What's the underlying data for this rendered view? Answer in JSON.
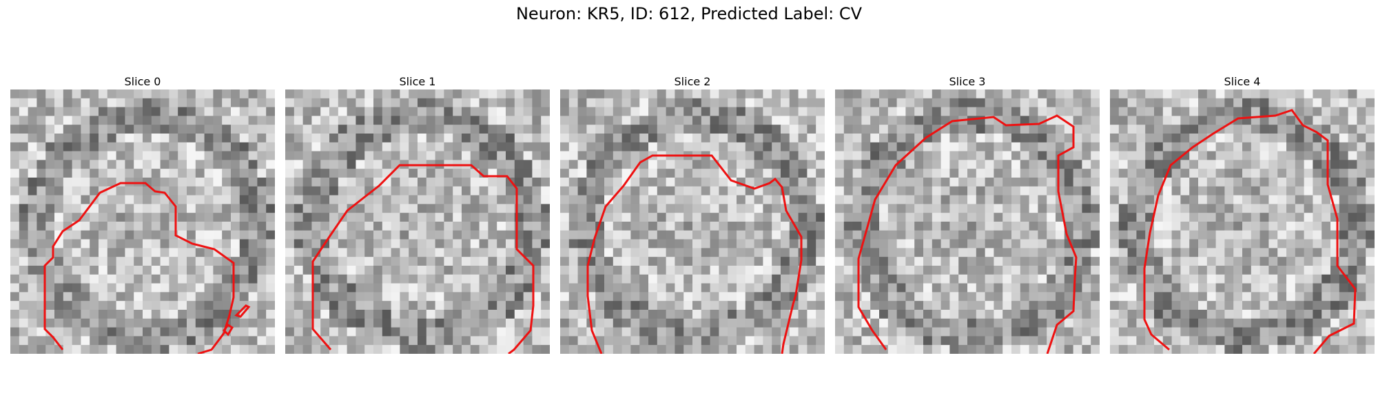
{
  "figure": {
    "title": "Neuron: KR5, ID: 612, Predicted Label: CV"
  },
  "slices": [
    {
      "label": "Slice 0"
    },
    {
      "label": "Slice 1"
    },
    {
      "label": "Slice 2"
    },
    {
      "label": "Slice 3"
    },
    {
      "label": "Slice 4"
    }
  ],
  "colors": {
    "contour": "#ee1111",
    "colormap": "grayscale"
  }
}
